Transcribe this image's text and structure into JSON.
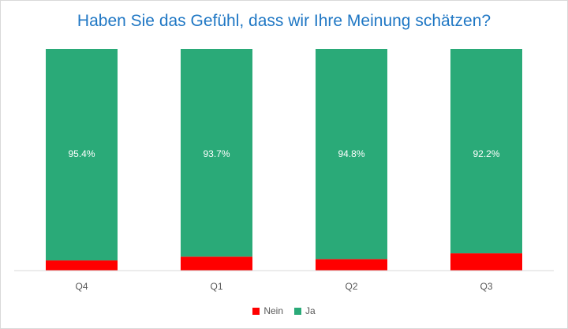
{
  "colors": {
    "nein": "#ff0000",
    "ja": "#2aaa78",
    "title": "#1f77c4",
    "axis_text": "#595959"
  },
  "chart_data": {
    "type": "bar",
    "stacked": true,
    "title": "Haben Sie das Gefühl, dass wir Ihre Meinung schätzen?",
    "categories": [
      "Q4",
      "Q1",
      "Q2",
      "Q3"
    ],
    "series": [
      {
        "name": "Nein",
        "values": [
          4.6,
          6.3,
          5.2,
          7.8
        ],
        "labels": [
          "",
          "",
          "",
          ""
        ]
      },
      {
        "name": "Ja",
        "values": [
          95.4,
          93.7,
          94.8,
          92.2
        ],
        "labels": [
          "95.4%",
          "93.7%",
          "94.8%",
          "92.2%"
        ]
      }
    ],
    "ylim": [
      0,
      100
    ],
    "grid": false,
    "legend": "bottom"
  }
}
